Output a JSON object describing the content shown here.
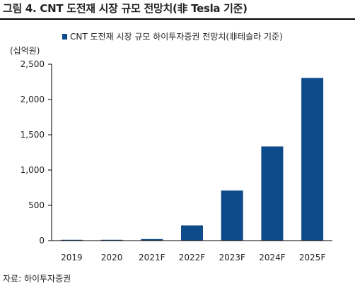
{
  "figure": {
    "title": "그림 4. CNT 도전재 시장 규모 전망치(非 Tesla 기준)",
    "source": "자료: 하이투자증권"
  },
  "chart_data": {
    "type": "bar",
    "categories": [
      "2019",
      "2020",
      "2021F",
      "2022F",
      "2023F",
      "2024F",
      "2025F"
    ],
    "series": [
      {
        "name": "CNT 도전재 시장 규모 하이투자증권 전망치(非테슬라 기준)",
        "values": [
          3,
          5,
          22,
          215,
          710,
          1335,
          2305
        ]
      }
    ],
    "unit": "(십억원)",
    "ylim": [
      0,
      2500
    ],
    "yticks": [
      0,
      500,
      1000,
      1500,
      2000,
      2500
    ],
    "ytick_labels": [
      "0",
      "500",
      "1,000",
      "1,500",
      "2,000",
      "2,500"
    ],
    "grid": false,
    "legend_position": "top",
    "bar_color": "#0d4a8a"
  }
}
